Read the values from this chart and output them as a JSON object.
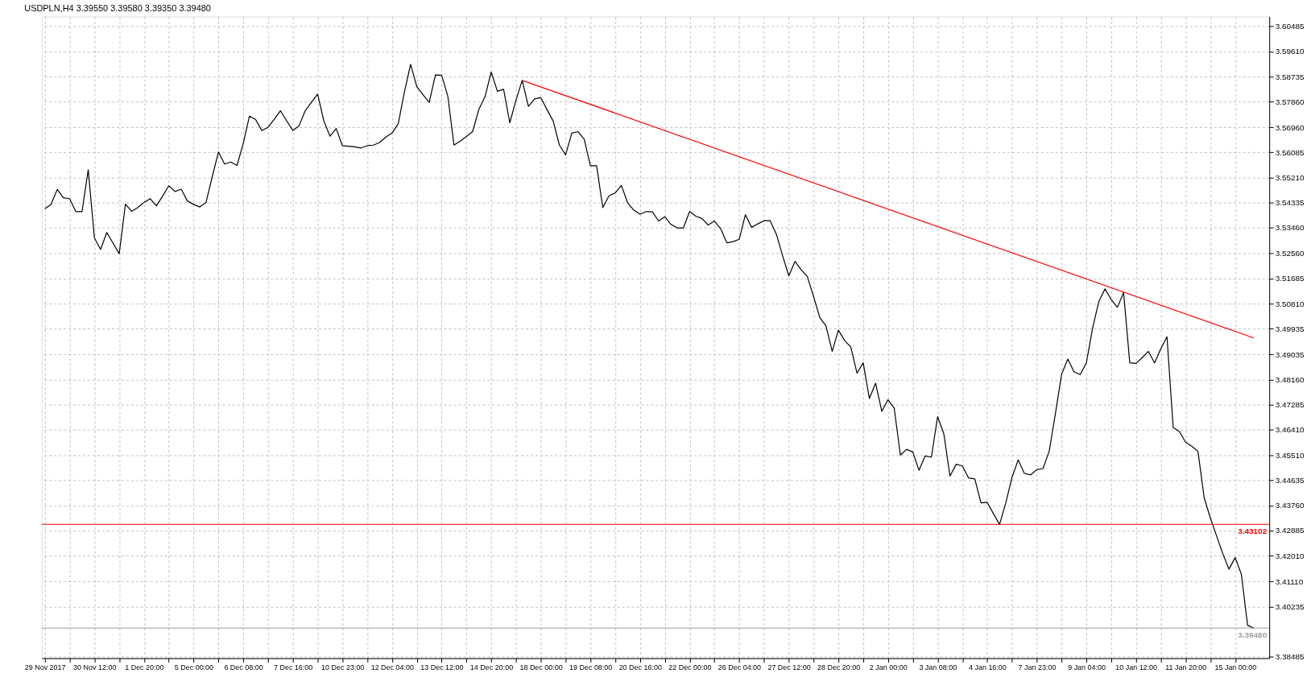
{
  "chart_data": {
    "type": "line",
    "title": "USDPLN,H4  3.39550 3.39580 3.39350 3.39480",
    "ylim": [
      3.3843,
      3.6083
    ],
    "categories": [
      "29 Nov 2017",
      null,
      null,
      null,
      null,
      null,
      null,
      null,
      "30 Nov 12:00",
      null,
      null,
      null,
      null,
      null,
      null,
      null,
      "1 Dec 20:00",
      null,
      null,
      null,
      null,
      null,
      null,
      null,
      "5 Dec 00:00",
      null,
      null,
      null,
      null,
      null,
      null,
      null,
      "6 Dec 08:00",
      null,
      null,
      null,
      null,
      null,
      null,
      null,
      "7 Dec 16:00",
      null,
      null,
      null,
      null,
      null,
      null,
      null,
      "10 Dec 23:00",
      null,
      null,
      null,
      null,
      null,
      null,
      null,
      "12 Dec 04:00",
      null,
      null,
      null,
      null,
      null,
      null,
      null,
      "13 Dec 12:00",
      null,
      null,
      null,
      null,
      null,
      null,
      null,
      "14 Dec 20:00",
      null,
      null,
      null,
      null,
      null,
      null,
      null,
      "18 Dec 00:00",
      null,
      null,
      null,
      null,
      null,
      null,
      null,
      "19 Dec 08:00",
      null,
      null,
      null,
      null,
      null,
      null,
      null,
      "20 Dec 16:00",
      null,
      null,
      null,
      null,
      null,
      null,
      null,
      "22 Dec 00:00",
      null,
      null,
      null,
      null,
      null,
      null,
      null,
      "26 Dec 04:00",
      null,
      null,
      null,
      null,
      null,
      null,
      null,
      "27 Dec 12:00",
      null,
      null,
      null,
      null,
      null,
      null,
      null,
      "28 Dec 20:00",
      null,
      null,
      null,
      null,
      null,
      null,
      null,
      "2 Jan 00:00",
      null,
      null,
      null,
      null,
      null,
      null,
      null,
      "3 Jan 08:00",
      null,
      null,
      null,
      null,
      null,
      null,
      null,
      "4 Jan 16:00",
      null,
      null,
      null,
      null,
      null,
      null,
      null,
      "7 Jan 23:00",
      null,
      null,
      null,
      null,
      null,
      null,
      null,
      "9 Jan 04:00",
      null,
      null,
      null,
      null,
      null,
      null,
      null,
      "10 Jan 12:00",
      null,
      null,
      null,
      null,
      null,
      null,
      null,
      "11 Jan 20:00",
      null,
      null,
      null,
      null,
      null,
      null,
      null,
      "15 Jan 00:00",
      null,
      null,
      null
    ],
    "yticks": [
      3.60485,
      {
        "value": 3.5961,
        "label": "3.59610"
      },
      3.58735,
      {
        "value": 3.5786,
        "label": "3.57860"
      },
      {
        "value": 3.5696,
        "label": "3.56960"
      },
      3.56085,
      {
        "value": 3.5521,
        "label": "3.55210"
      },
      3.54335,
      {
        "value": 3.5346,
        "label": "3.53460"
      },
      {
        "value": 3.5256,
        "label": "3.52560"
      },
      3.51685,
      {
        "value": 3.5081,
        "label": "3.50810"
      },
      3.49935,
      3.49035,
      {
        "value": 3.4816,
        "label": "3.48160"
      },
      3.47285,
      {
        "value": 3.4641,
        "label": "3.46410"
      },
      {
        "value": 3.4551,
        "label": "3.45510"
      },
      3.44635,
      {
        "value": 3.4376,
        "label": "3.43760"
      },
      3.42885,
      {
        "value": 3.4201,
        "label": "3.42010"
      },
      {
        "value": 3.4111,
        "label": "3.41110"
      },
      3.40235,
      3.38485
    ],
    "grid": true,
    "series": [
      {
        "color": "#000000",
        "values": [
          3.5412,
          3.5427,
          3.5479,
          3.545,
          3.5447,
          3.5402,
          3.5402,
          3.5548,
          3.531,
          3.527,
          3.5329,
          3.5292,
          3.5255,
          3.5428,
          3.5403,
          3.5416,
          3.5434,
          3.5447,
          3.5422,
          3.5456,
          3.5492,
          3.5472,
          3.548,
          3.5439,
          3.5427,
          3.5418,
          3.5434,
          3.5523,
          3.561,
          3.5568,
          3.5575,
          3.5563,
          3.5639,
          3.5735,
          3.5723,
          3.5685,
          3.5696,
          3.5724,
          3.5754,
          3.5719,
          3.5685,
          3.5701,
          3.5754,
          3.5783,
          3.5812,
          3.5719,
          3.5665,
          3.5692,
          3.5632,
          3.563,
          3.5628,
          3.5624,
          3.5632,
          3.5634,
          3.5643,
          3.5662,
          3.5676,
          3.5708,
          3.5819,
          3.5916,
          3.5838,
          3.581,
          3.5783,
          3.5879,
          3.5878,
          3.5805,
          3.5634,
          3.5648,
          3.5664,
          3.5681,
          3.5758,
          3.5803,
          3.5889,
          3.5822,
          3.5829,
          3.5712,
          3.5791,
          3.586,
          3.5769,
          3.5795,
          3.58,
          3.5758,
          3.5718,
          3.5634,
          3.56,
          3.5676,
          3.5681,
          3.5655,
          3.5562,
          3.5562,
          3.5416,
          3.5457,
          3.5467,
          3.5493,
          3.5433,
          3.5407,
          3.5393,
          3.5402,
          3.5401,
          3.5369,
          3.5384,
          3.5357,
          3.5345,
          3.5345,
          3.5402,
          3.5386,
          3.5378,
          3.5355,
          3.5369,
          3.5343,
          3.5293,
          3.5297,
          3.5305,
          3.5391,
          3.5347,
          3.5359,
          3.537,
          3.537,
          3.5323,
          3.5248,
          3.5178,
          3.5228,
          3.5199,
          3.5175,
          3.5105,
          3.5032,
          3.5003,
          3.4914,
          3.4988,
          3.4952,
          3.4929,
          3.4838,
          3.4874,
          3.475,
          3.4803,
          3.4705,
          3.4745,
          3.4716,
          3.4552,
          3.4572,
          3.4563,
          3.4499,
          3.4549,
          3.4545,
          3.4686,
          3.4627,
          3.4479,
          3.452,
          3.4514,
          3.4472,
          3.4469,
          3.4385,
          3.4387,
          3.4348,
          3.431,
          3.4385,
          3.4474,
          3.4535,
          3.4488,
          3.4483,
          3.4501,
          3.4505,
          3.4565,
          3.4696,
          3.4834,
          3.4887,
          3.4843,
          3.4833,
          3.4874,
          3.4995,
          3.5088,
          3.5132,
          3.5095,
          3.5068,
          3.5119,
          3.4874,
          3.4872,
          3.4892,
          3.4914,
          3.4874,
          3.4923,
          3.4965,
          3.4648,
          3.4634,
          3.4597,
          3.4583,
          3.4565,
          3.4403,
          3.4332,
          3.427,
          3.4208,
          3.4154,
          3.4194,
          3.4136,
          3.3958,
          3.3948
        ]
      },
      {
        "color": "#ff0000",
        "values": [
          null,
          null,
          null,
          null,
          null,
          null,
          null,
          null,
          null,
          null,
          null,
          null,
          null,
          null,
          null,
          null,
          null,
          null,
          null,
          null,
          null,
          null,
          null,
          null,
          null,
          null,
          null,
          null,
          null,
          null,
          null,
          null,
          null,
          null,
          null,
          null,
          null,
          null,
          null,
          null,
          null,
          null,
          null,
          null,
          null,
          null,
          null,
          null,
          null,
          null,
          null,
          null,
          null,
          null,
          null,
          null,
          null,
          null,
          null,
          null,
          null,
          null,
          null,
          null,
          null,
          null,
          null,
          null,
          null,
          null,
          null,
          null,
          null,
          null,
          null,
          null,
          null,
          3.586,
          null,
          null,
          null,
          null,
          null,
          null,
          null,
          null,
          null,
          null,
          null,
          null,
          null,
          null,
          null,
          null,
          null,
          null,
          null,
          null,
          null,
          null,
          null,
          null,
          null,
          null,
          null,
          null,
          null,
          null,
          null,
          null,
          null,
          null,
          null,
          null,
          null,
          null,
          null,
          null,
          null,
          null,
          null,
          null,
          null,
          null,
          null,
          null,
          null,
          null,
          null,
          null,
          null,
          null,
          null,
          null,
          null,
          null,
          null,
          null,
          null,
          null,
          null,
          null,
          null,
          null,
          null,
          null,
          null,
          null,
          null,
          null,
          null,
          null,
          null,
          null,
          null,
          null,
          null,
          null,
          null,
          null,
          null,
          null,
          null,
          null,
          null,
          null,
          null,
          null,
          null,
          null,
          null,
          null,
          null,
          null,
          null,
          null,
          null,
          null,
          null,
          null,
          null,
          null,
          null,
          null,
          null,
          null,
          null,
          null,
          null,
          null,
          null,
          null,
          null,
          null,
          null,
          3.4961
        ]
      }
    ],
    "ref_lines": [
      {
        "axis": "y",
        "value": 3.43102,
        "label": "3.43102",
        "color": "#ff0000"
      },
      {
        "axis": "y",
        "value": 3.3948,
        "label": "3.39480",
        "color": "#a0a0a0"
      }
    ]
  }
}
